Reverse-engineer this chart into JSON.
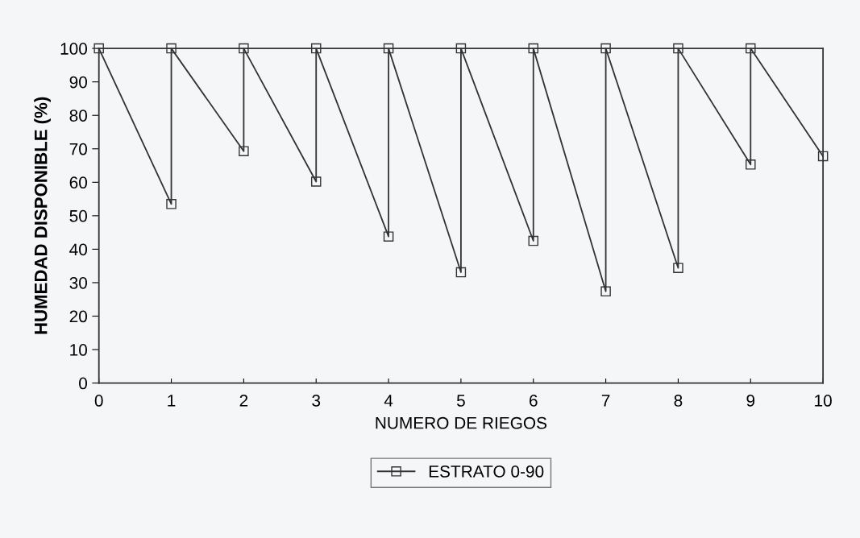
{
  "chart_data": {
    "type": "line",
    "xlabel": "NUMERO DE RIEGOS",
    "ylabel": "HUMEDAD DISPONIBLE (%)",
    "x": [
      0,
      1,
      1,
      2,
      2,
      3,
      3,
      4,
      4,
      5,
      5,
      6,
      6,
      7,
      7,
      8,
      8,
      9,
      9,
      10
    ],
    "series": [
      {
        "name": "ESTRATO 0-90",
        "color": "#333333",
        "values": [
          100,
          53.5,
          100,
          69.3,
          100,
          60.2,
          100,
          43.8,
          100,
          33.1,
          100,
          42.5,
          100,
          27.4,
          100,
          34.4,
          100,
          65.3,
          100,
          67.8
        ]
      }
    ],
    "xlim": [
      0,
      10
    ],
    "xticks": [
      0,
      1,
      2,
      3,
      4,
      5,
      6,
      7,
      8,
      9,
      10
    ],
    "ylim": [
      0,
      100
    ],
    "yticks": [
      0,
      10,
      20,
      30,
      40,
      50,
      60,
      70,
      80,
      90,
      100
    ],
    "grid": false,
    "legend": "bottom",
    "marker": "square",
    "line_style": "solid"
  }
}
